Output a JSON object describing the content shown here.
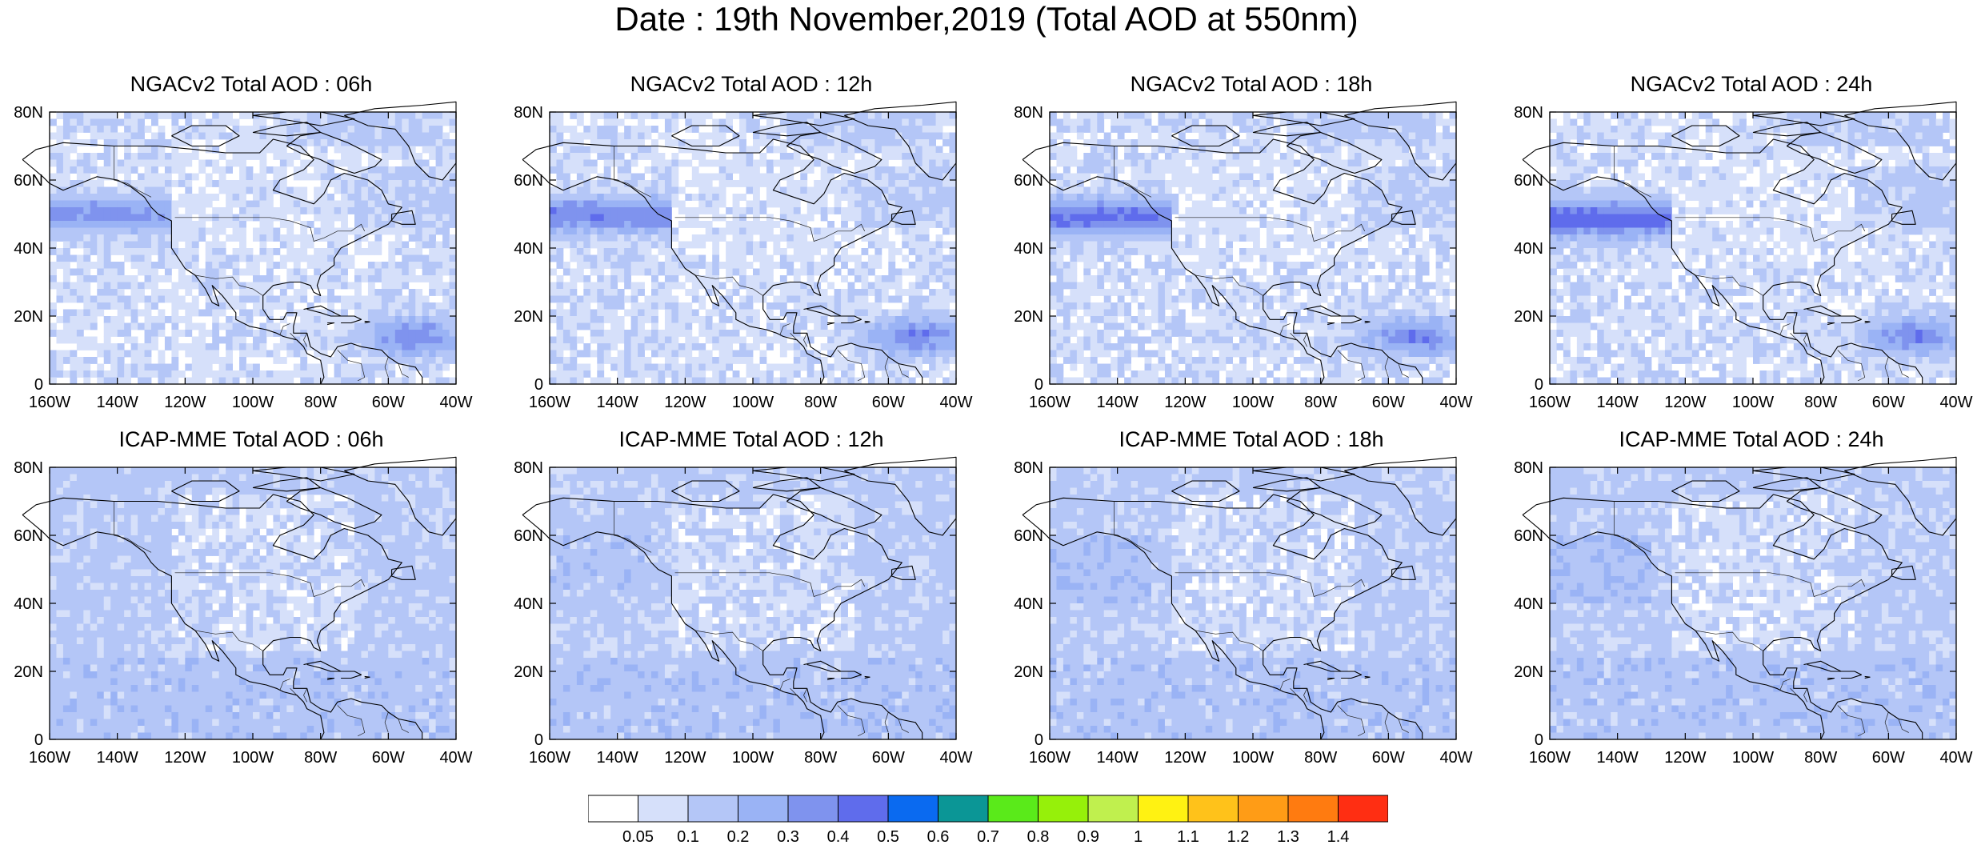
{
  "figure": {
    "title": "Date : 19th November,2019 (Total AOD at 550nm)"
  },
  "chart_data": {
    "type": "heatmap",
    "title": "Date : 19th November,2019 (Total AOD at 550nm)",
    "variable": "Total AOD at 550nm",
    "date": "19th November,2019",
    "x_ticks": [
      "160W",
      "140W",
      "120W",
      "100W",
      "80W",
      "60W",
      "40W"
    ],
    "y_ticks": [
      "80N",
      "60N",
      "40N",
      "20N",
      "0"
    ],
    "xlim": [
      -160,
      -40
    ],
    "ylim": [
      0,
      80
    ],
    "colorbar": {
      "levels": [
        "0.05",
        "0.1",
        "0.2",
        "0.3",
        "0.4",
        "0.5",
        "0.6",
        "0.7",
        "0.8",
        "0.9",
        "1",
        "1.1",
        "1.2",
        "1.3",
        "1.4"
      ],
      "colors": [
        "#ffffff",
        "#d6e0fa",
        "#b4c6f7",
        "#9ab3f5",
        "#7f93ee",
        "#5f6cec",
        "#0a6af0",
        "#0b9696",
        "#5aea1a",
        "#96f00a",
        "#c0f04e",
        "#fff212",
        "#ffc21a",
        "#ff9c16",
        "#ff7b10",
        "#ff2e12"
      ]
    },
    "panels": [
      {
        "title": "NGACv2 Total AOD : 06h",
        "model": "NGACv2",
        "lead": "06h"
      },
      {
        "title": "NGACv2 Total AOD : 12h",
        "model": "NGACv2",
        "lead": "12h"
      },
      {
        "title": "NGACv2 Total AOD : 18h",
        "model": "NGACv2",
        "lead": "18h"
      },
      {
        "title": "NGACv2 Total AOD : 24h",
        "model": "NGACv2",
        "lead": "24h"
      },
      {
        "title": "ICAP-MME Total AOD : 06h",
        "model": "ICAP-MME",
        "lead": "06h"
      },
      {
        "title": "ICAP-MME Total AOD : 12h",
        "model": "ICAP-MME",
        "lead": "12h"
      },
      {
        "title": "ICAP-MME Total AOD : 18h",
        "model": "ICAP-MME",
        "lead": "18h"
      },
      {
        "title": "ICAP-MME Total AOD : 24h",
        "model": "ICAP-MME",
        "lead": "24h"
      }
    ]
  }
}
